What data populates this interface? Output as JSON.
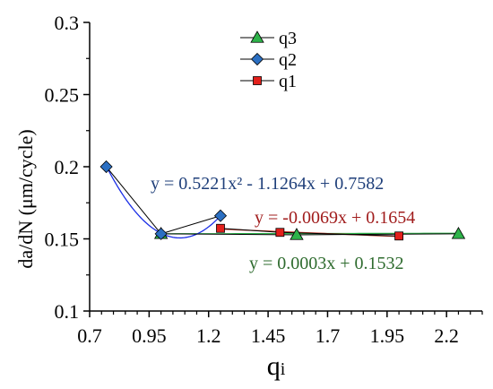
{
  "chart_data": {
    "type": "scatter",
    "xlabel_main": "q",
    "xlabel_sub": "i",
    "ylabel": "da/dN (μm/cycle)",
    "xlim": [
      0.7,
      2.35
    ],
    "ylim": [
      0.1,
      0.3
    ],
    "x_ticks": [
      0.7,
      0.95,
      1.2,
      1.45,
      1.7,
      1.95,
      2.2
    ],
    "x_tick_labels": [
      "0.7",
      "0.95",
      "1.2",
      "1.45",
      "1.7",
      "1.95",
      "2.2"
    ],
    "y_ticks": [
      0.1,
      0.15,
      0.2,
      0.25,
      0.3
    ],
    "y_tick_labels": [
      "0.1",
      "0.15",
      "0.2",
      "0.25",
      "0.3"
    ],
    "legend_position": "top-center",
    "series": [
      {
        "name": "q3",
        "marker": "triangle",
        "color": "#2eb34a",
        "x": [
          1.0,
          1.57,
          2.25
        ],
        "y": [
          0.1535,
          0.1528,
          0.1535
        ],
        "trendline": {
          "type": "linear",
          "coeffs": [
            0.0003,
            0.1532
          ],
          "color": "#2eb34a",
          "equation": "y = 0.0003x + 0.1532"
        }
      },
      {
        "name": "q2",
        "marker": "diamond",
        "color": "#2b6fc2",
        "x": [
          0.77,
          1.0,
          1.25
        ],
        "y": [
          0.2,
          0.1535,
          0.166
        ],
        "trendline": {
          "type": "poly2",
          "coeffs": [
            0.5221,
            -1.1264,
            0.7582
          ],
          "color": "#1a2ee6",
          "equation": "y = 0.5221x² - 1.1264x + 0.7582"
        }
      },
      {
        "name": "q1",
        "marker": "square",
        "color": "#e3201b",
        "x": [
          1.25,
          1.5,
          2.0
        ],
        "y": [
          0.1573,
          0.1545,
          0.152
        ],
        "trendline": {
          "type": "linear",
          "coeffs": [
            -0.0069,
            0.1654
          ],
          "color": "#c0392b",
          "equation": "y = -0.0069x + 0.1654"
        }
      }
    ],
    "equation_colors": [
      "#2e6b2e",
      "#1f3f7a",
      "#a11d1d"
    ]
  }
}
